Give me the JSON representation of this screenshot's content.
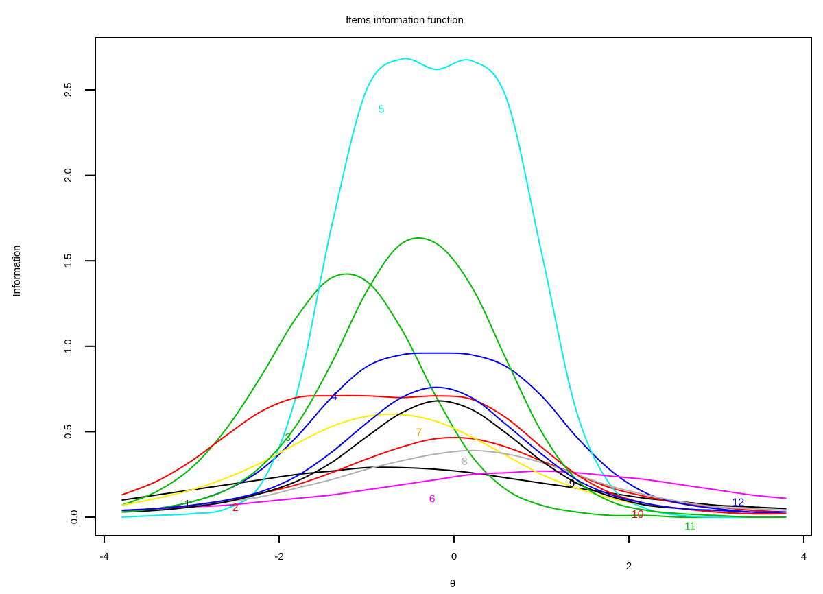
{
  "chart_data": {
    "type": "line",
    "title": "Items information function",
    "xlabel": "θ",
    "ylabel": "Information",
    "xlim": [
      -4,
      4
    ],
    "ylim": [
      0,
      2.7
    ],
    "x_ticks": [
      -4,
      -2,
      0,
      2,
      4
    ],
    "x_tick_labels": [
      "-4",
      "-2",
      "0",
      "2",
      "4"
    ],
    "y_ticks": [
      0,
      0.5,
      1.0,
      1.5,
      2.0,
      2.5
    ],
    "y_tick_labels": [
      "0.0",
      "0.5",
      "1.0",
      "1.5",
      "2.0",
      "2.5"
    ],
    "grid": false,
    "legend": "none (curves labeled inline)",
    "x": [
      -3.8,
      -3.4,
      -3.0,
      -2.6,
      -2.2,
      -1.8,
      -1.4,
      -1.0,
      -0.6,
      -0.2,
      0.2,
      0.6,
      1.0,
      1.4,
      1.8,
      2.2,
      2.6,
      3.0,
      3.4,
      3.8
    ],
    "series": [
      {
        "name": "1",
        "color": "#000000",
        "label_pos": [
          -3.05,
          0.08
        ],
        "values": [
          0.1,
          0.13,
          0.16,
          0.19,
          0.22,
          0.25,
          0.27,
          0.29,
          0.29,
          0.28,
          0.26,
          0.23,
          0.2,
          0.17,
          0.14,
          0.11,
          0.09,
          0.07,
          0.06,
          0.05
        ]
      },
      {
        "name": "2",
        "color": "#ff0000",
        "label_pos": [
          -2.5,
          0.06
        ],
        "values": [
          0.04,
          0.05,
          0.07,
          0.1,
          0.14,
          0.19,
          0.26,
          0.34,
          0.41,
          0.46,
          0.46,
          0.41,
          0.33,
          0.25,
          0.17,
          0.12,
          0.08,
          0.06,
          0.04,
          0.03
        ]
      },
      {
        "name": "3",
        "color": "#00bb00",
        "label_pos": [
          -1.9,
          0.47
        ],
        "values": [
          0.07,
          0.15,
          0.29,
          0.52,
          0.83,
          1.17,
          1.4,
          1.38,
          1.1,
          0.7,
          0.36,
          0.16,
          0.07,
          0.03,
          0.01,
          0.01,
          0.0,
          0.0,
          0.0,
          0.0
        ]
      },
      {
        "name": "4",
        "color": "#0000ee",
        "label_pos": [
          -1.37,
          0.71
        ],
        "values": [
          0.03,
          0.05,
          0.09,
          0.16,
          0.28,
          0.47,
          0.7,
          0.88,
          0.95,
          0.96,
          0.95,
          0.88,
          0.71,
          0.47,
          0.27,
          0.14,
          0.08,
          0.05,
          0.03,
          0.02
        ]
      },
      {
        "name": "5",
        "color": "#00eeee",
        "label_pos": [
          -0.83,
          2.39
        ],
        "values": [
          0.0,
          0.01,
          0.02,
          0.05,
          0.2,
          0.72,
          1.7,
          2.5,
          2.68,
          2.62,
          2.67,
          2.45,
          1.55,
          0.62,
          0.18,
          0.05,
          0.01,
          0.0,
          0.0,
          0.0
        ]
      },
      {
        "name": "6",
        "color": "#ff00ff",
        "label_pos": [
          -0.25,
          0.11
        ],
        "values": [
          0.04,
          0.05,
          0.06,
          0.07,
          0.09,
          0.11,
          0.13,
          0.16,
          0.19,
          0.22,
          0.25,
          0.26,
          0.27,
          0.26,
          0.24,
          0.22,
          0.19,
          0.16,
          0.13,
          0.11
        ]
      },
      {
        "name": "7",
        "color": "#ffee00",
        "label_color": "#ffa500",
        "label_pos": [
          -0.4,
          0.5
        ],
        "values": [
          0.07,
          0.11,
          0.16,
          0.23,
          0.32,
          0.43,
          0.53,
          0.59,
          0.6,
          0.56,
          0.47,
          0.36,
          0.25,
          0.17,
          0.11,
          0.07,
          0.05,
          0.03,
          0.02,
          0.02
        ]
      },
      {
        "name": "8",
        "color": "#b0b0b0",
        "label_pos": [
          0.12,
          0.33
        ],
        "values": [
          0.03,
          0.04,
          0.06,
          0.09,
          0.12,
          0.17,
          0.22,
          0.28,
          0.33,
          0.37,
          0.39,
          0.37,
          0.32,
          0.25,
          0.18,
          0.13,
          0.09,
          0.06,
          0.05,
          0.04
        ]
      },
      {
        "name": "9",
        "color": "#000000",
        "label_pos": [
          1.35,
          0.2
        ],
        "values": [
          0.03,
          0.04,
          0.06,
          0.09,
          0.14,
          0.21,
          0.32,
          0.47,
          0.61,
          0.68,
          0.63,
          0.49,
          0.33,
          0.2,
          0.12,
          0.07,
          0.05,
          0.03,
          0.02,
          0.02
        ]
      },
      {
        "name": "10",
        "color": "#ff0000",
        "label_pos": [
          2.1,
          0.02
        ],
        "values": [
          0.13,
          0.21,
          0.33,
          0.48,
          0.62,
          0.7,
          0.71,
          0.71,
          0.7,
          0.71,
          0.69,
          0.58,
          0.41,
          0.25,
          0.14,
          0.08,
          0.05,
          0.03,
          0.02,
          0.02
        ]
      },
      {
        "name": "11",
        "color": "#00bb00",
        "label_pos": [
          2.7,
          -0.05
        ],
        "values": [
          0.03,
          0.05,
          0.09,
          0.16,
          0.3,
          0.54,
          0.9,
          1.32,
          1.6,
          1.6,
          1.35,
          0.92,
          0.5,
          0.22,
          0.09,
          0.04,
          0.02,
          0.01,
          0.0,
          0.0
        ]
      },
      {
        "name": "12",
        "color": "#0000ee",
        "label_pos": [
          3.25,
          0.09
        ],
        "values": [
          0.04,
          0.05,
          0.07,
          0.1,
          0.15,
          0.24,
          0.38,
          0.55,
          0.7,
          0.76,
          0.7,
          0.54,
          0.37,
          0.22,
          0.13,
          0.08,
          0.05,
          0.04,
          0.03,
          0.03
        ]
      }
    ]
  }
}
